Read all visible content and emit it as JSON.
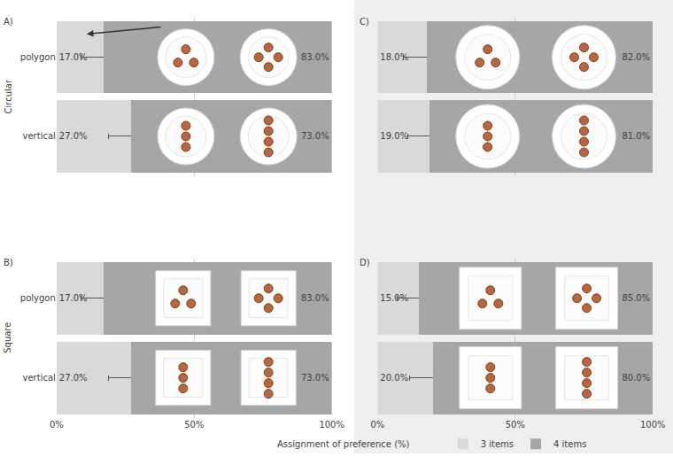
{
  "xlabel": "Assignment of preference (%)",
  "chart_data": [
    {
      "type": "bar",
      "title": "A)",
      "ylabel": "Circular",
      "orientation": "horizontal",
      "stacked": true,
      "data_labels": true,
      "grid": true,
      "tick_labels": "y",
      "categories": [
        "polygon",
        "vertical"
      ],
      "series": [
        {
          "name": "3 items",
          "color": "#d9d9d9",
          "values": [
            17,
            27
          ],
          "errors": [
            8,
            8
          ],
          "value_labels": [
            "17.0%",
            "27.0%"
          ]
        },
        {
          "name": "4 items",
          "color": "#a6a6a6",
          "values": [
            83,
            73
          ],
          "value_labels": [
            "83.0%",
            "73.0%"
          ]
        }
      ],
      "xlim": [
        0,
        100
      ],
      "xticks": [
        {
          "value": 0,
          "label": "0%"
        },
        {
          "value": 50,
          "label": "50%"
        },
        {
          "value": 100,
          "label": "100%"
        }
      ]
    },
    {
      "type": "bar",
      "title": "B)",
      "ylabel": "Square",
      "orientation": "horizontal",
      "stacked": true,
      "data_labels": true,
      "grid": true,
      "tick_labels": true,
      "categories": [
        "polygon",
        "vertical"
      ],
      "series": [
        {
          "name": "3 items",
          "color": "#d9d9d9",
          "values": [
            17,
            27
          ],
          "errors": [
            8,
            8
          ],
          "value_labels": [
            "17.0%",
            "27.0%"
          ]
        },
        {
          "name": "4 items",
          "color": "#a6a6a6",
          "values": [
            83,
            73
          ],
          "value_labels": [
            "83.0%",
            "73.0%"
          ]
        }
      ],
      "xlim": [
        0,
        100
      ],
      "xticks": [
        {
          "value": 0,
          "label": "0%"
        },
        {
          "value": 50,
          "label": "50%"
        },
        {
          "value": 100,
          "label": "100%"
        }
      ]
    },
    {
      "type": "bar",
      "title": "C)",
      "orientation": "horizontal",
      "stacked": true,
      "data_labels": true,
      "grid": true,
      "tick_labels": false,
      "categories": [
        "polygon",
        "vertical"
      ],
      "series": [
        {
          "name": "3 items",
          "color": "#d9d9d9",
          "values": [
            18,
            19
          ],
          "errors": [
            8.5,
            8
          ],
          "value_labels": [
            "18.0%",
            "19.0%"
          ]
        },
        {
          "name": "4 items",
          "color": "#a6a6a6",
          "values": [
            82,
            81
          ],
          "value_labels": [
            "82.0%",
            "81.0%"
          ]
        }
      ],
      "xlim": [
        0,
        100
      ],
      "xticks": [
        {
          "value": 0,
          "label": "0%"
        },
        {
          "value": 50,
          "label": "50%"
        },
        {
          "value": 100,
          "label": "100%"
        }
      ]
    },
    {
      "type": "bar",
      "title": "D)",
      "orientation": "horizontal",
      "stacked": true,
      "data_labels": true,
      "grid": true,
      "tick_labels": "x",
      "legend": "bottom",
      "categories": [
        "polygon",
        "vertical"
      ],
      "series": [
        {
          "name": "3 items",
          "color": "#d9d9d9",
          "values": [
            15,
            20
          ],
          "errors": [
            8,
            8.5
          ],
          "value_labels": [
            "15.0%",
            "20.0%"
          ]
        },
        {
          "name": "4 items",
          "color": "#a6a6a6",
          "values": [
            85,
            80
          ],
          "value_labels": [
            "85.0%",
            "80.0%"
          ]
        }
      ],
      "xlim": [
        0,
        100
      ],
      "xticks": [
        {
          "value": 0,
          "label": "0%"
        },
        {
          "value": 50,
          "label": "50%"
        },
        {
          "value": 100,
          "label": "100%"
        }
      ]
    }
  ]
}
